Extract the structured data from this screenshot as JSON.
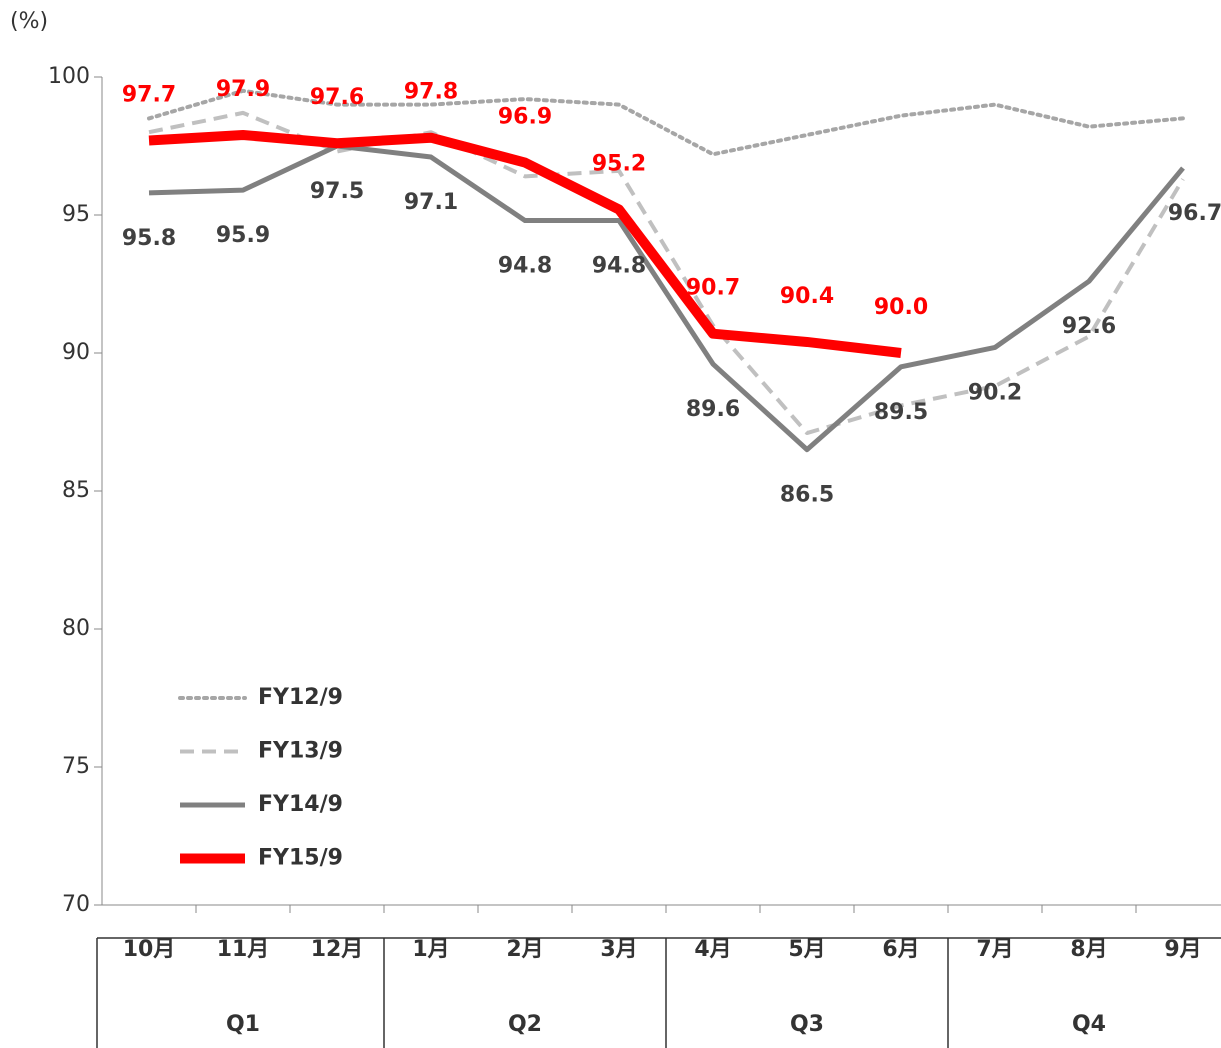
{
  "chart_data": {
    "type": "line",
    "y_unit": "(%)",
    "categories": [
      "10月",
      "11月",
      "12月",
      "1月",
      "2月",
      "3月",
      "4月",
      "5月",
      "6月",
      "7月",
      "8月",
      "9月"
    ],
    "groups": [
      "Q1",
      "Q2",
      "Q3",
      "Q4"
    ],
    "ylim": [
      70,
      100
    ],
    "yticks": [
      70,
      75,
      80,
      85,
      90,
      95,
      100
    ],
    "legend": "lower left",
    "series": [
      {
        "name": "FY12/9",
        "color": "#a6a6a6",
        "line_style": "dotted",
        "values": [
          98.5,
          99.5,
          99.0,
          99.0,
          99.2,
          99.0,
          97.2,
          97.9,
          98.6,
          99.0,
          98.2,
          98.5
        ]
      },
      {
        "name": "FY13/9",
        "color": "#c0c0c0",
        "line_style": "dashed",
        "values": [
          98.0,
          98.7,
          97.3,
          98.0,
          96.4,
          96.6,
          91.0,
          87.1,
          88.1,
          88.8,
          90.6,
          96.3
        ]
      },
      {
        "name": "FY14/9",
        "color": "#808080",
        "line_style": "solid",
        "label_color": "#404040",
        "values": [
          95.8,
          95.9,
          97.5,
          97.1,
          94.8,
          94.8,
          89.6,
          86.5,
          89.5,
          90.2,
          92.6,
          96.7
        ]
      },
      {
        "name": "FY15/9",
        "color": "#ff0000",
        "line_style": "solid",
        "label_color": "#ff0000",
        "values": [
          97.7,
          97.9,
          97.6,
          97.8,
          96.9,
          95.2,
          90.7,
          90.4,
          90.0,
          null,
          null,
          null
        ],
        "value_labels": [
          "97.7",
          "97.9",
          "97.6",
          "97.8",
          "96.9",
          "95.2",
          "90.7",
          "90.4",
          "90.0",
          null,
          null,
          null
        ]
      }
    ]
  }
}
